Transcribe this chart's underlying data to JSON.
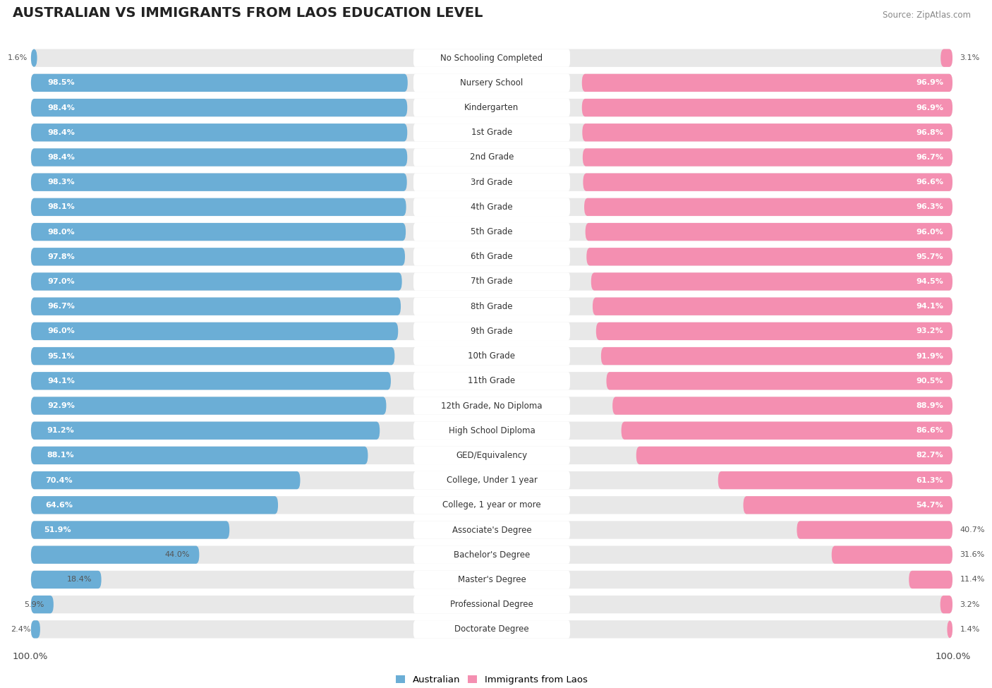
{
  "title": "AUSTRALIAN VS IMMIGRANTS FROM LAOS EDUCATION LEVEL",
  "source": "Source: ZipAtlas.com",
  "categories": [
    "No Schooling Completed",
    "Nursery School",
    "Kindergarten",
    "1st Grade",
    "2nd Grade",
    "3rd Grade",
    "4th Grade",
    "5th Grade",
    "6th Grade",
    "7th Grade",
    "8th Grade",
    "9th Grade",
    "10th Grade",
    "11th Grade",
    "12th Grade, No Diploma",
    "High School Diploma",
    "GED/Equivalency",
    "College, Under 1 year",
    "College, 1 year or more",
    "Associate's Degree",
    "Bachelor's Degree",
    "Master's Degree",
    "Professional Degree",
    "Doctorate Degree"
  ],
  "australian": [
    1.6,
    98.5,
    98.4,
    98.4,
    98.4,
    98.3,
    98.1,
    98.0,
    97.8,
    97.0,
    96.7,
    96.0,
    95.1,
    94.1,
    92.9,
    91.2,
    88.1,
    70.4,
    64.6,
    51.9,
    44.0,
    18.4,
    5.9,
    2.4
  ],
  "immigrants": [
    3.1,
    96.9,
    96.9,
    96.8,
    96.7,
    96.6,
    96.3,
    96.0,
    95.7,
    94.5,
    94.1,
    93.2,
    91.9,
    90.5,
    88.9,
    86.6,
    82.7,
    61.3,
    54.7,
    40.7,
    31.6,
    11.4,
    3.2,
    1.4
  ],
  "bar_color_australian": "#6baed6",
  "bar_color_immigrants": "#f48fb1",
  "bar_bg_color": "#e8e8e8",
  "label_bg_color": "#ffffff",
  "title_fontsize": 14,
  "label_fontsize": 8.5,
  "value_fontsize": 8.0,
  "legend_fontsize": 9.5,
  "bar_height": 0.72,
  "bar_gap": 0.12
}
